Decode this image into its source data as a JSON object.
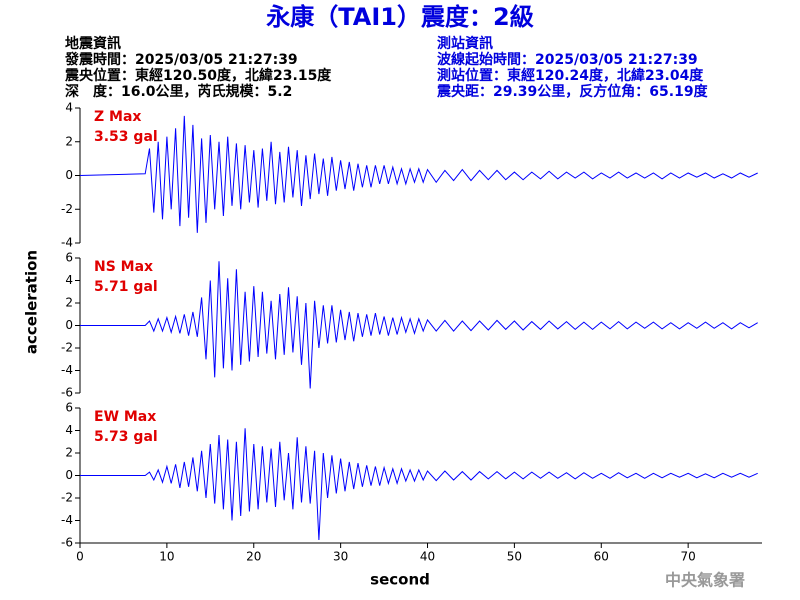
{
  "header": {
    "title": "永康（TAI1）震度：2級",
    "left": [
      "地震資訊",
      "發震時間：2025/03/05 21:27:39",
      "震央位置：東經120.50度，北緯23.15度",
      "深　度：16.0公里，芮氏規模：5.2"
    ],
    "right": [
      "測站資訊",
      "波線起始時間：2025/03/05 21:27:39",
      "測站位置：東經120.24度，北緯23.04度",
      "震央距：29.39公里，反方位角：65.19度"
    ],
    "footer": "中央氣象署"
  },
  "chart_data": {
    "type": "line",
    "xlabel": "second",
    "ylabel": "acceleration",
    "color": "#0000ff",
    "xlim": [
      0,
      78.5
    ],
    "xticks": [
      0,
      10,
      20,
      30,
      40,
      50,
      60,
      70
    ],
    "x": [
      0,
      7.5,
      8,
      8.5,
      9,
      9.5,
      10,
      10.5,
      11,
      11.5,
      12,
      12.5,
      13,
      13.5,
      14,
      14.5,
      15,
      15.5,
      16,
      16.5,
      17,
      17.5,
      18,
      18.5,
      19,
      19.5,
      20,
      20.5,
      21,
      21.5,
      22,
      22.5,
      23,
      23.5,
      24,
      24.5,
      25,
      25.5,
      26,
      26.5,
      27,
      27.5,
      28,
      28.5,
      29,
      29.5,
      30,
      30.5,
      31,
      31.5,
      32,
      32.5,
      33,
      33.5,
      34,
      34.5,
      35,
      35.5,
      36,
      36.5,
      37,
      37.5,
      38,
      38.5,
      39,
      39.5,
      40,
      41,
      42,
      43,
      44,
      45,
      46,
      47,
      48,
      49,
      50,
      51,
      52,
      53,
      54,
      55,
      56,
      57,
      58,
      59,
      60,
      61,
      62,
      63,
      64,
      65,
      66,
      67,
      68,
      69,
      70,
      71,
      72,
      73,
      74,
      75,
      76,
      77,
      78
    ],
    "panels": [
      {
        "annotation": [
          "Z Max",
          "3.53 gal"
        ],
        "ylim": [
          -4,
          4
        ],
        "yticks": [
          4,
          2,
          0,
          -2,
          -4
        ],
        "values": [
          0,
          0.1,
          1.6,
          -2.2,
          2.0,
          -2.6,
          2.3,
          -2.0,
          2.8,
          -3.0,
          3.53,
          -2.5,
          3.0,
          -3.4,
          2.2,
          -2.8,
          2.4,
          -2.0,
          2.0,
          -2.4,
          2.3,
          -1.8,
          1.9,
          -2.0,
          1.8,
          -1.6,
          1.5,
          -1.9,
          1.6,
          -1.5,
          2.0,
          -1.7,
          1.4,
          -1.6,
          1.7,
          -1.3,
          1.5,
          -1.8,
          1.2,
          -1.4,
          1.3,
          -1.1,
          1.0,
          -1.2,
          1.1,
          -0.9,
          0.9,
          -0.8,
          0.8,
          -0.9,
          0.7,
          -0.7,
          0.6,
          -0.7,
          0.6,
          -0.5,
          0.6,
          -0.5,
          0.5,
          -0.5,
          0.4,
          -0.5,
          0.4,
          -0.4,
          0.4,
          -0.4,
          0.35,
          -0.4,
          0.3,
          -0.3,
          0.35,
          -0.3,
          0.3,
          -0.25,
          0.3,
          -0.25,
          0.2,
          -0.25,
          0.2,
          -0.2,
          0.25,
          -0.2,
          0.2,
          -0.15,
          0.2,
          -0.2,
          0.15,
          -0.15,
          0.2,
          -0.15,
          0.15,
          -0.15,
          0.15,
          -0.2,
          0.15,
          -0.15,
          0.15,
          -0.1,
          0.15,
          -0.15,
          0.1,
          -0.15,
          0.15,
          -0.1,
          0.15
        ]
      },
      {
        "annotation": [
          "NS Max",
          "5.71 gal"
        ],
        "ylim": [
          -6,
          6
        ],
        "yticks": [
          6,
          4,
          2,
          0,
          -2,
          -4,
          -6
        ],
        "values": [
          0,
          0,
          0.4,
          -0.5,
          0.6,
          -0.5,
          0.7,
          -0.6,
          0.8,
          -0.7,
          1.0,
          -0.9,
          1.2,
          -1.0,
          2.5,
          -3.0,
          4.0,
          -4.6,
          5.71,
          -3.8,
          4.2,
          -4.0,
          5.0,
          -3.5,
          3.0,
          -3.2,
          3.5,
          -2.8,
          3.0,
          -2.5,
          2.2,
          -3.0,
          2.8,
          -2.6,
          3.4,
          -2.4,
          2.6,
          -3.5,
          2.0,
          -5.6,
          2.2,
          -2.0,
          1.8,
          -1.6,
          1.8,
          -1.5,
          1.4,
          -1.3,
          1.2,
          -1.4,
          1.1,
          -1.0,
          1.0,
          -0.9,
          1.1,
          -0.8,
          0.8,
          -0.9,
          0.7,
          -0.8,
          0.7,
          -0.6,
          0.6,
          -0.7,
          0.6,
          -0.5,
          0.5,
          -0.5,
          0.45,
          -0.5,
          0.4,
          -0.45,
          0.4,
          -0.4,
          0.45,
          -0.35,
          0.4,
          -0.4,
          0.35,
          -0.35,
          0.4,
          -0.3,
          0.35,
          -0.35,
          0.3,
          -0.35,
          0.3,
          -0.3,
          0.35,
          -0.3,
          0.3,
          -0.25,
          0.3,
          -0.3,
          0.25,
          -0.3,
          0.25,
          -0.25,
          0.3,
          -0.25,
          0.25,
          -0.3,
          0.25,
          -0.2,
          0.25
        ]
      },
      {
        "annotation": [
          "EW Max",
          "5.73 gal"
        ],
        "ylim": [
          -6,
          6
        ],
        "yticks": [
          6,
          4,
          2,
          0,
          -2,
          -4,
          -6
        ],
        "values": [
          0,
          0,
          0.3,
          -0.4,
          0.5,
          -0.6,
          0.8,
          -0.7,
          1.0,
          -1.1,
          1.2,
          -1.0,
          1.6,
          -1.4,
          2.2,
          -2.0,
          2.8,
          -2.5,
          3.6,
          -3.0,
          3.2,
          -4.0,
          3.0,
          -3.6,
          4.2,
          -3.2,
          2.8,
          -3.0,
          2.6,
          -2.4,
          2.4,
          -2.8,
          3.0,
          -2.2,
          2.0,
          -3.0,
          3.4,
          -2.4,
          2.6,
          -2.5,
          2.2,
          -5.73,
          2.0,
          -2.0,
          1.8,
          -1.6,
          1.5,
          -1.4,
          1.2,
          -1.2,
          1.1,
          -1.0,
          0.9,
          -0.9,
          0.8,
          -0.9,
          0.7,
          -0.7,
          0.6,
          -0.7,
          0.6,
          -0.5,
          0.5,
          -0.5,
          0.5,
          -0.4,
          0.4,
          -0.45,
          0.4,
          -0.4,
          0.35,
          -0.4,
          0.35,
          -0.3,
          0.35,
          -0.3,
          0.3,
          -0.3,
          0.3,
          -0.25,
          0.3,
          -0.25,
          0.25,
          -0.3,
          0.25,
          -0.25,
          0.2,
          -0.25,
          0.25,
          -0.2,
          0.2,
          -0.25,
          0.2,
          -0.2,
          0.2,
          -0.15,
          0.2,
          -0.2,
          0.15,
          -0.2,
          0.2,
          -0.15,
          0.2,
          -0.15,
          0.2
        ]
      }
    ]
  }
}
